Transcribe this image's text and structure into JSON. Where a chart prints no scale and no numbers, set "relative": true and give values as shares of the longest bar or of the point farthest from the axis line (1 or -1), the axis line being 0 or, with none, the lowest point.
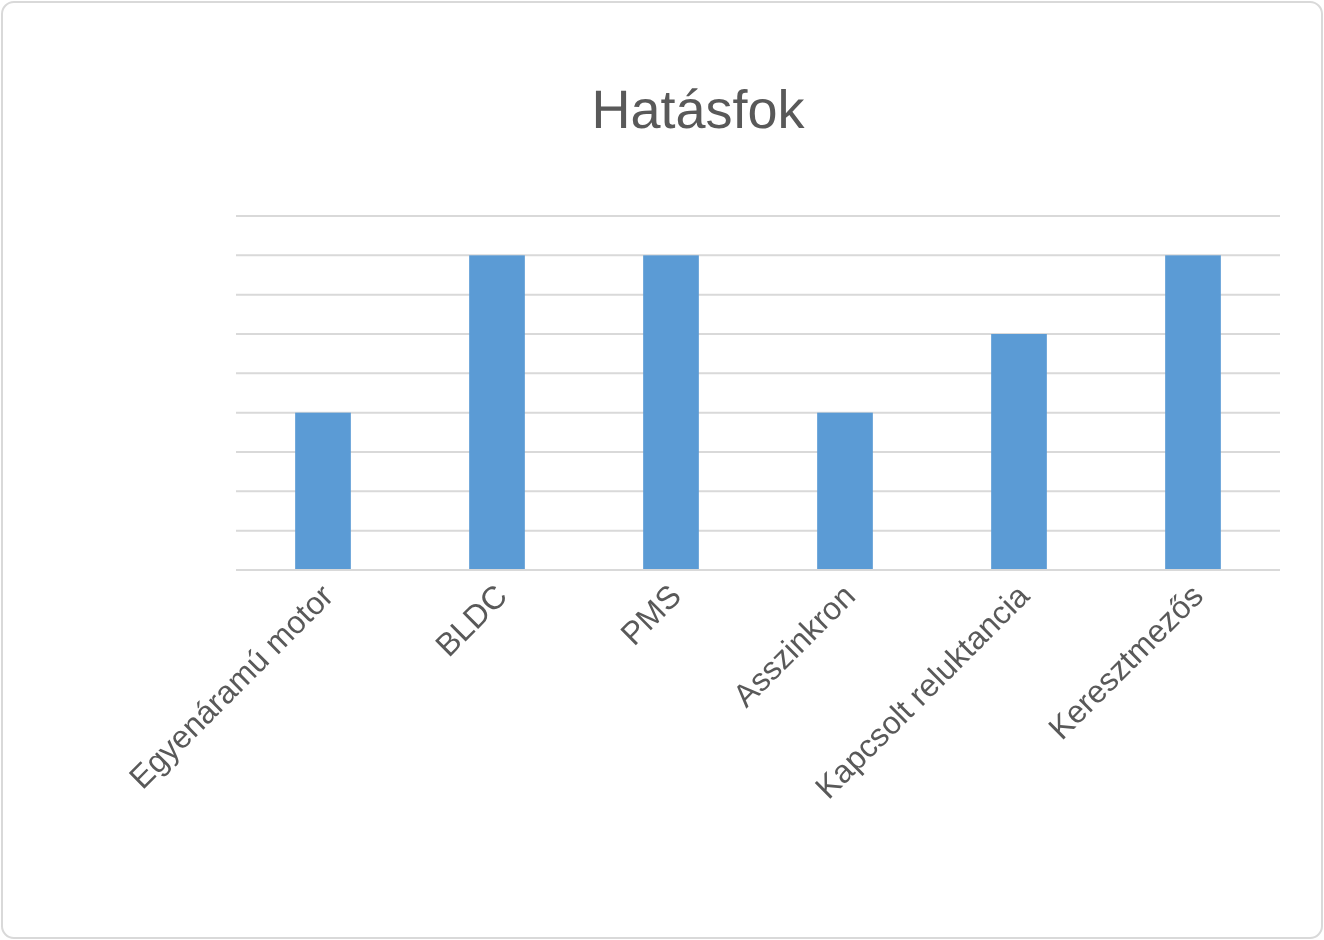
{
  "chart_data": {
    "type": "bar",
    "title": "Hatásfok",
    "relative": true,
    "grid": "y",
    "categories": [
      "Egyenáramú motor",
      "BLDC",
      "PMS",
      "Asszinkron",
      "Kapcsolt reluktancia",
      "Keresztmezős"
    ],
    "values": [
      0.5,
      1,
      1,
      0.5,
      0.75,
      1
    ],
    "color": "#5b9bd5"
  }
}
